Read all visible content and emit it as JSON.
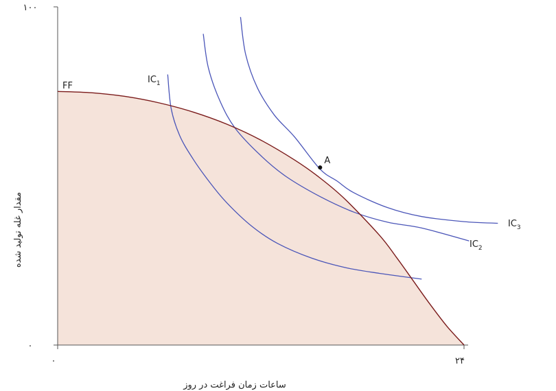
{
  "chart_data": {
    "type": "line",
    "title": "",
    "xlabel": "ساعات زمان فراغت در روز",
    "ylabel": "مقدار غله تولید شده",
    "xlim": [
      0,
      24
    ],
    "ylim": [
      0,
      100
    ],
    "x_ticks": [
      {
        "value": 0,
        "label": "۰"
      },
      {
        "value": 24,
        "label": "۲۴"
      }
    ],
    "y_ticks": [
      {
        "value": 0,
        "label": "۰"
      },
      {
        "value": 100,
        "label": "۱۰۰"
      }
    ],
    "grid": false,
    "colors": {
      "frontier": "#7a1a1a",
      "frontier_fill": "#f5e3da",
      "indifference": "#4a55b8",
      "axis": "#555555",
      "point": "#111111"
    },
    "frontier": {
      "name": "FF",
      "points": [
        [
          0,
          75
        ],
        [
          2,
          74.6
        ],
        [
          4,
          73.5
        ],
        [
          6,
          71.6
        ],
        [
          8,
          68.9
        ],
        [
          10,
          65.3
        ],
        [
          12,
          60.6
        ],
        [
          14,
          54.7
        ],
        [
          15.5,
          49.4
        ],
        [
          17,
          43.0
        ],
        [
          19,
          32.5
        ],
        [
          20,
          26.0
        ],
        [
          21,
          19.0
        ],
        [
          22,
          12.0
        ],
        [
          23,
          5.5
        ],
        [
          24,
          0
        ]
      ]
    },
    "indifference_curves": [
      {
        "label": "IC",
        "subscript": "1",
        "points": [
          [
            6.5,
            80
          ],
          [
            6.7,
            70
          ],
          [
            7.2,
            62
          ],
          [
            8,
            55
          ],
          [
            9,
            48
          ],
          [
            10,
            42
          ],
          [
            11.5,
            35
          ],
          [
            13,
            30
          ],
          [
            15,
            25.7
          ],
          [
            17,
            22.9
          ],
          [
            19,
            21.2
          ],
          [
            21.5,
            19.5
          ]
        ]
      },
      {
        "label": "IC",
        "subscript": "2",
        "points": [
          [
            8.6,
            92
          ],
          [
            8.9,
            82
          ],
          [
            9.6,
            72
          ],
          [
            10.5,
            64
          ],
          [
            12,
            56
          ],
          [
            13.5,
            49.8
          ],
          [
            15.5,
            43.9
          ],
          [
            17.5,
            39.3
          ],
          [
            19.5,
            36.3
          ],
          [
            21.5,
            34.6
          ],
          [
            24.3,
            30.8
          ]
        ]
      },
      {
        "label": "IC",
        "subscript": "3",
        "points": [
          [
            10.8,
            97
          ],
          [
            11.1,
            86
          ],
          [
            11.8,
            76
          ],
          [
            12.8,
            68
          ],
          [
            14,
            61.5
          ],
          [
            15.5,
            52
          ],
          [
            16.5,
            48.5
          ],
          [
            17.5,
            45
          ],
          [
            19.5,
            40.6
          ],
          [
            21.5,
            38
          ],
          [
            24,
            36.5
          ],
          [
            26,
            36
          ]
        ]
      }
    ],
    "point": {
      "label": "A",
      "x": 15.5,
      "y": 52.5
    }
  }
}
